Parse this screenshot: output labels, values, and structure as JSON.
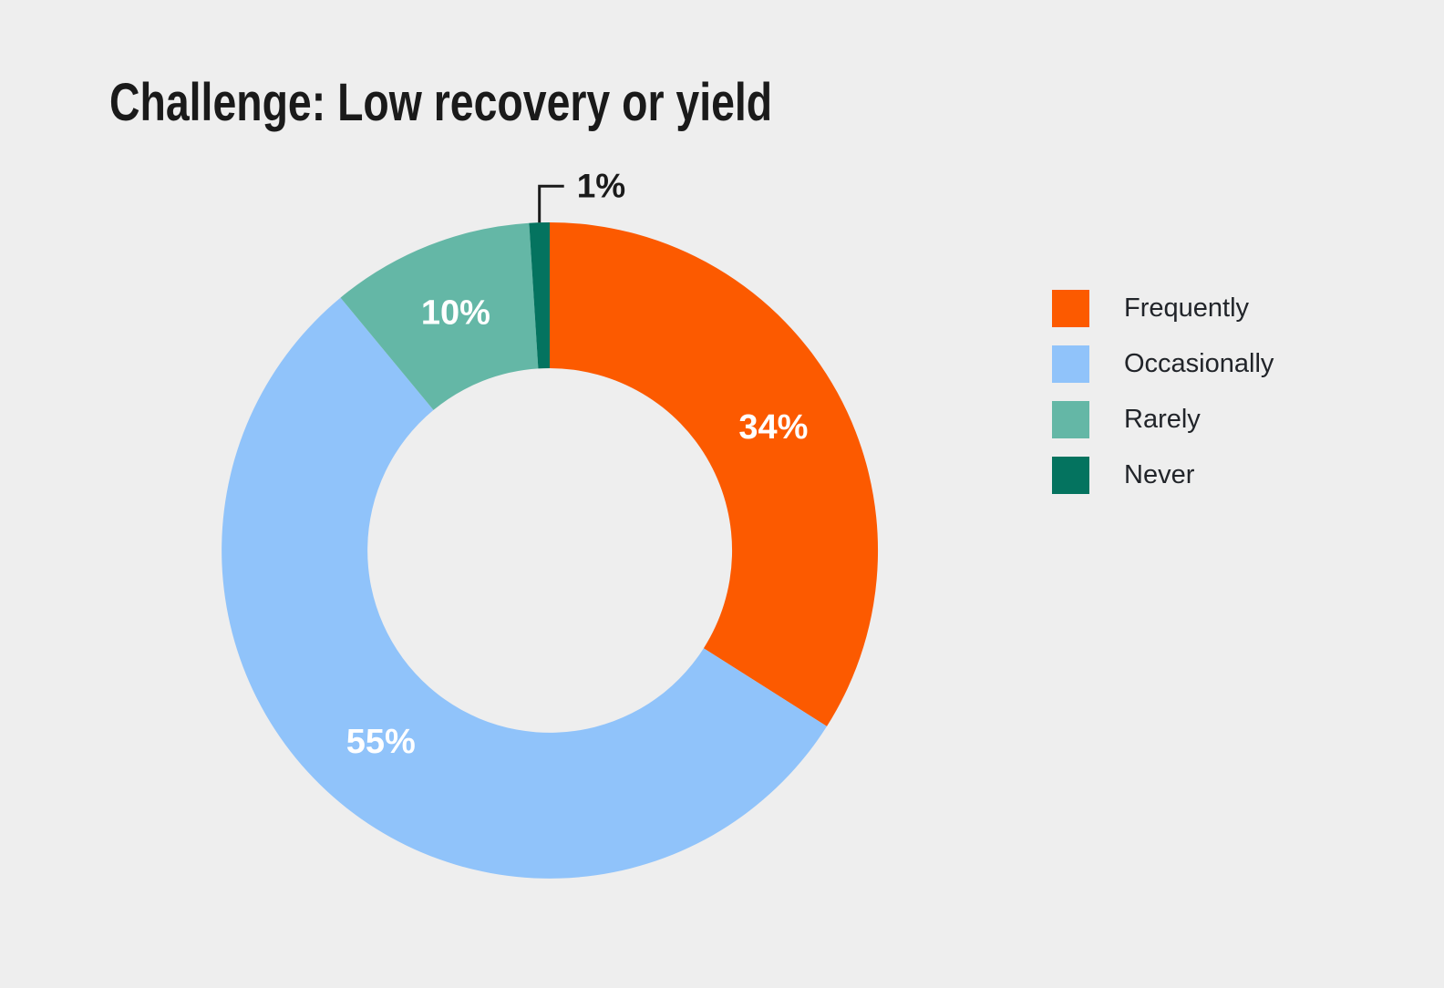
{
  "title": "Challenge: Low recovery or yield",
  "chart_data": {
    "type": "pie",
    "subtype": "donut",
    "title": "Challenge: Low recovery or yield",
    "unit": "%",
    "categories": [
      "Frequently",
      "Occasionally",
      "Rarely",
      "Never"
    ],
    "values": [
      34,
      55,
      10,
      1
    ],
    "segments": [
      {
        "label": "Frequently",
        "value": 34,
        "label_text": "34%",
        "color": "#FC5A00",
        "label_placement": "inside"
      },
      {
        "label": "Occasionally",
        "value": 55,
        "label_text": "55%",
        "color": "#90C3FA",
        "label_placement": "inside"
      },
      {
        "label": "Rarely",
        "value": 10,
        "label_text": "10%",
        "color": "#64B7A6",
        "label_placement": "inside"
      },
      {
        "label": "Never",
        "value": 1,
        "label_text": "1%",
        "color": "#04735F",
        "label_placement": "outside-callout"
      }
    ],
    "start_angle_deg": 0,
    "direction": "clockwise",
    "inner_radius_ratio": 0.555,
    "legend_position": "right",
    "grid": false,
    "background_color": "#EEEEEE",
    "inside_label_color": "#FFFFFF",
    "outside_label_color": "#1A1A1A",
    "title_color": "#1A1A1A",
    "legend_text_color": "#212429"
  }
}
